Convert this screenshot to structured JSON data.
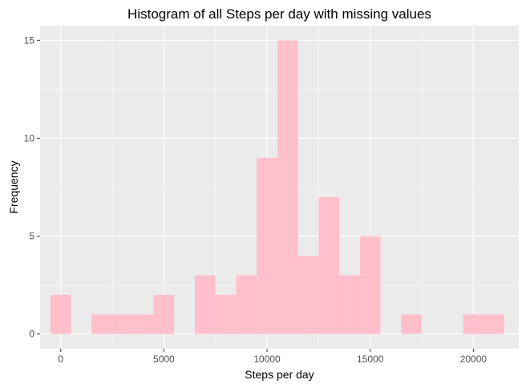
{
  "chart_data": {
    "type": "bar",
    "title": "Histogram of all Steps per day with missing values",
    "xlabel": "Steps per day",
    "ylabel": "Frequency",
    "binwidth": 1000,
    "bin_centers": [
      0,
      1000,
      2000,
      3000,
      4000,
      5000,
      6000,
      7000,
      8000,
      9000,
      10000,
      11000,
      12000,
      13000,
      14000,
      15000,
      16000,
      17000,
      18000,
      19000,
      20000,
      21000
    ],
    "values": [
      2,
      0,
      1,
      1,
      1,
      2,
      0,
      3,
      2,
      3,
      9,
      15,
      4,
      7,
      3,
      5,
      0,
      1,
      0,
      0,
      1,
      1
    ],
    "xlim": [
      -1000,
      22200
    ],
    "ylim": [
      -0.75,
      15.75
    ],
    "x_ticks": [
      0,
      5000,
      10000,
      15000,
      20000
    ],
    "x_tick_labels": [
      "0",
      "5000",
      "10000",
      "15000",
      "20000"
    ],
    "y_ticks": [
      0,
      5,
      10,
      15
    ],
    "y_tick_labels": [
      "0",
      "5",
      "10",
      "15"
    ],
    "fill_color": "#FFC0CB",
    "panel_background": "#EBEBEB",
    "grid_color": "#FFFFFF",
    "grid": true,
    "legend": "none"
  }
}
